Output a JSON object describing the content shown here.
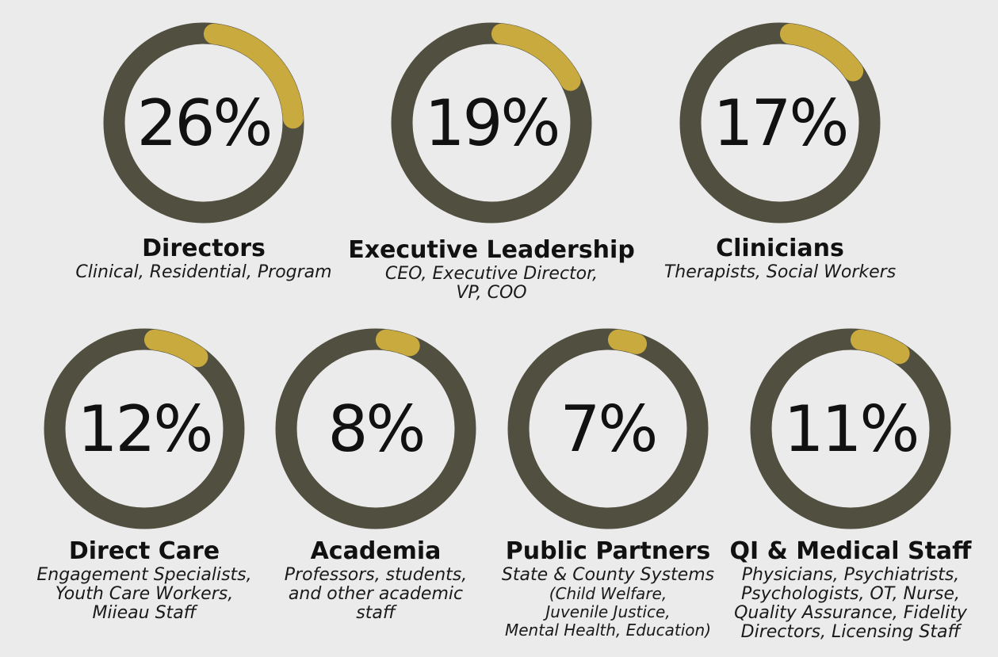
{
  "chart_data": {
    "type": "donut",
    "colors": {
      "ring": "#514f3f",
      "highlight": "#c9aa3f",
      "text": "#111111"
    },
    "items": [
      {
        "value": 26,
        "label": "26%",
        "title": "Directors",
        "desc": [
          "Clinical, Residential, Program"
        ]
      },
      {
        "value": 19,
        "label": "19%",
        "title": "Executive Leadership",
        "desc": [
          "CEO, Executive Director,",
          "VP, COO"
        ]
      },
      {
        "value": 17,
        "label": "17%",
        "title": "Clinicians",
        "desc": [
          "Therapists, Social Workers"
        ]
      },
      {
        "value": 12,
        "label": "12%",
        "title": "Direct Care",
        "desc": [
          "Engagement Specialists,",
          "Youth Care Workers,",
          "Miieau Staff"
        ]
      },
      {
        "value": 8,
        "label": "8%",
        "title": "Academia",
        "desc": [
          "Professors, students,",
          "and other academic",
          "staff"
        ]
      },
      {
        "value": 7,
        "label": "7%",
        "title": "Public Partners",
        "desc": [
          "State & County Systems",
          "(Child Welfare,",
          "Juvenile Justice,",
          "Mental Health, Education)"
        ]
      },
      {
        "value": 11,
        "label": "11%",
        "title": "QI & Medical Staff",
        "desc": [
          "Physicians, Psychiatrists,",
          "Psychologists, OT, Nurse,",
          "Quality Assurance, Fidelity",
          "Directors, Licensing Staff"
        ]
      }
    ]
  }
}
